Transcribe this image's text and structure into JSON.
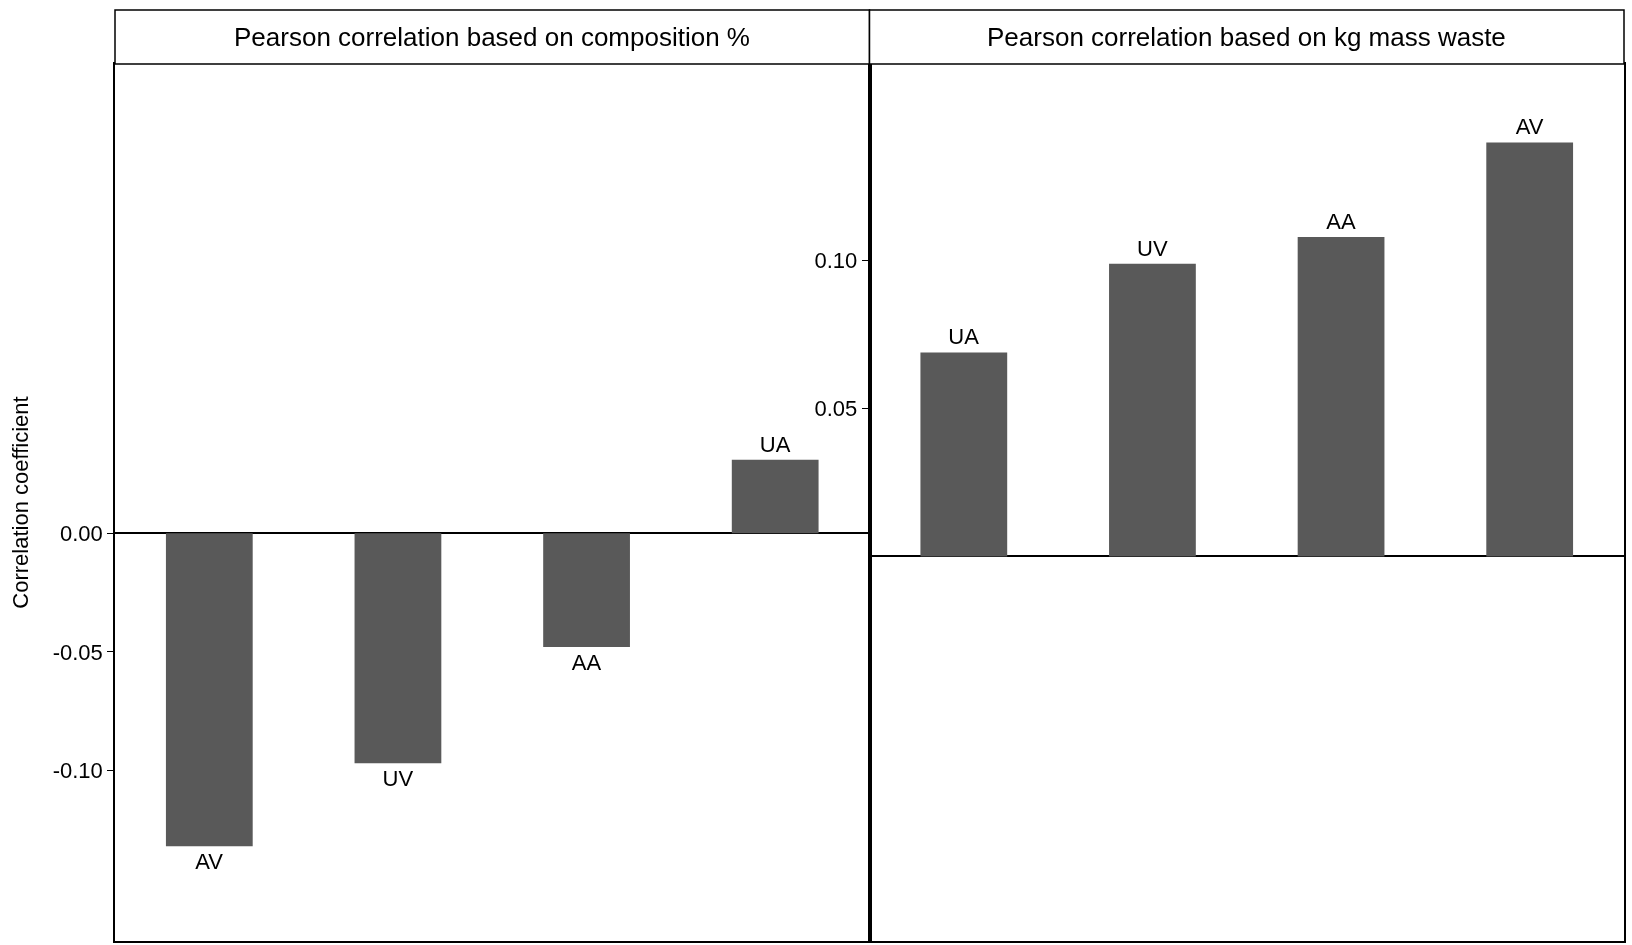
{
  "chart_data": [
    {
      "type": "bar",
      "title": "Pearson correlation based on composition %",
      "ylabel": "Correlation coefficient",
      "categories": [
        "AV",
        "UV",
        "AA",
        "UA"
      ],
      "values": [
        -0.132,
        -0.097,
        -0.048,
        0.031
      ],
      "color": "#595959",
      "ylim": [
        -0.172,
        0.198
      ],
      "yticks": [
        {
          "value": -0.1,
          "label": "-0.10"
        },
        {
          "value": -0.05,
          "label": "-0.05"
        },
        {
          "value": 0,
          "label": "0.00"
        }
      ],
      "tick_labels": "y"
    },
    {
      "type": "bar",
      "title": "Pearson correlation based on kg mass waste",
      "categories": [
        "UA",
        "UV",
        "AA",
        "AV"
      ],
      "values": [
        0.069,
        0.099,
        0.108,
        0.14
      ],
      "color": "#595959",
      "ylim": [
        -0.13,
        0.1665
      ],
      "yticks": [
        {
          "value": 0.05,
          "label": "0.05"
        },
        {
          "value": 0.1,
          "label": "0.10"
        }
      ],
      "tick_labels": "y"
    }
  ]
}
